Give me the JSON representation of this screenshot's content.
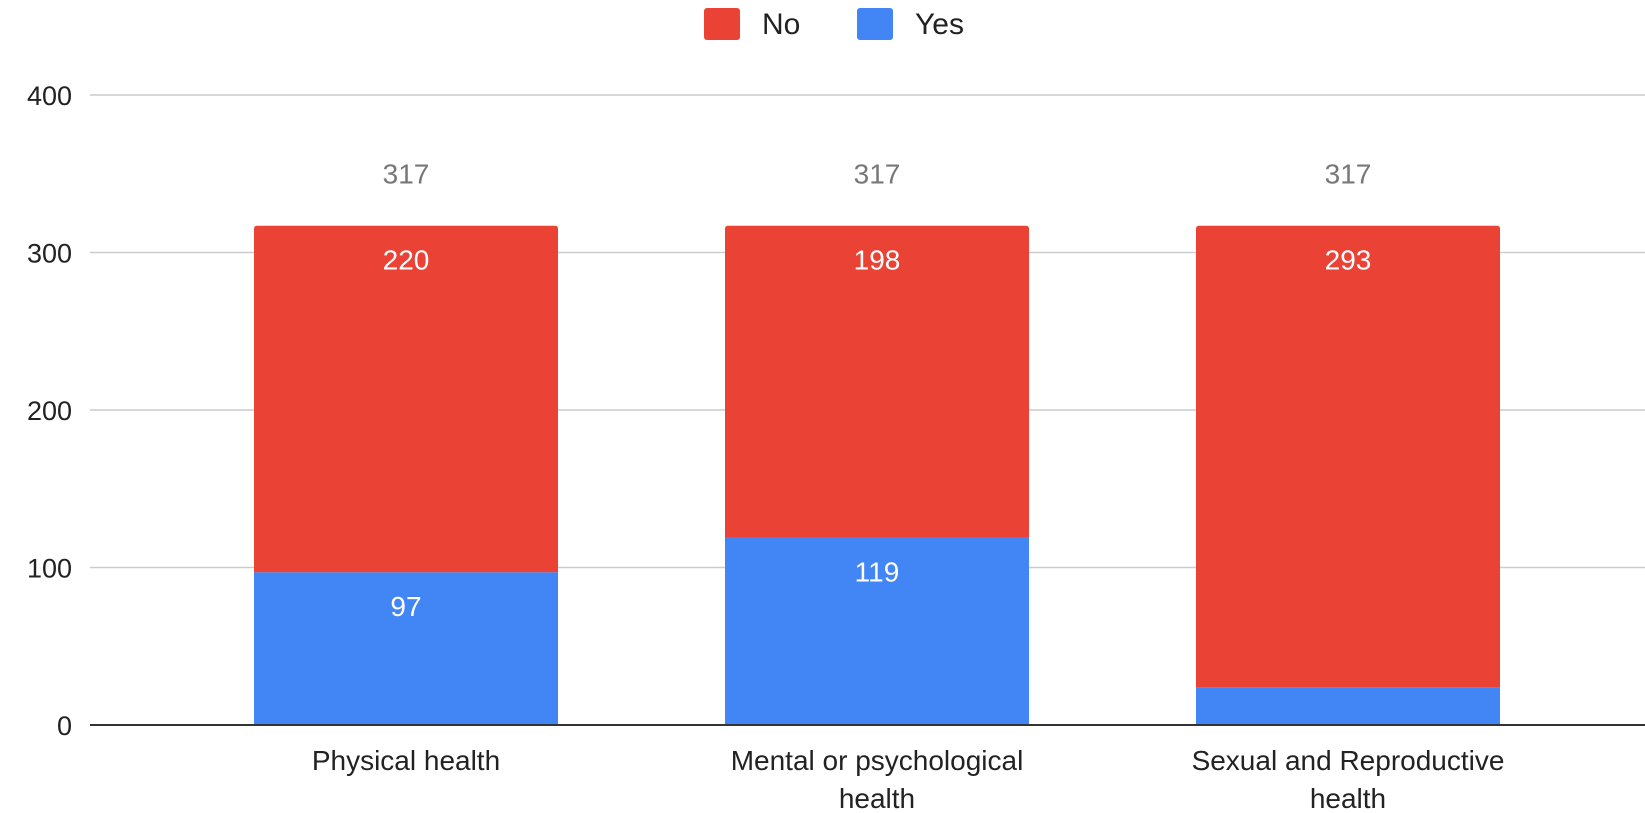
{
  "chart_data": {
    "type": "bar",
    "stacked": true,
    "categories": [
      [
        "Physical health"
      ],
      [
        "Mental or psychological",
        "health"
      ],
      [
        "Sexual and Reproductive",
        "health"
      ]
    ],
    "series": [
      {
        "name": "Yes",
        "color": "#4285f4",
        "values": [
          97,
          119,
          24
        ]
      },
      {
        "name": "No",
        "color": "#ea4335",
        "values": [
          220,
          198,
          293
        ]
      }
    ],
    "totals": [
      317,
      317,
      317
    ],
    "legend": {
      "position": "top",
      "order": [
        "No",
        "Yes"
      ]
    },
    "ylim": [
      0,
      400
    ],
    "yticks": [
      0,
      100,
      200,
      300,
      400
    ],
    "grid": true,
    "title": "",
    "xlabel": "",
    "ylabel": ""
  }
}
